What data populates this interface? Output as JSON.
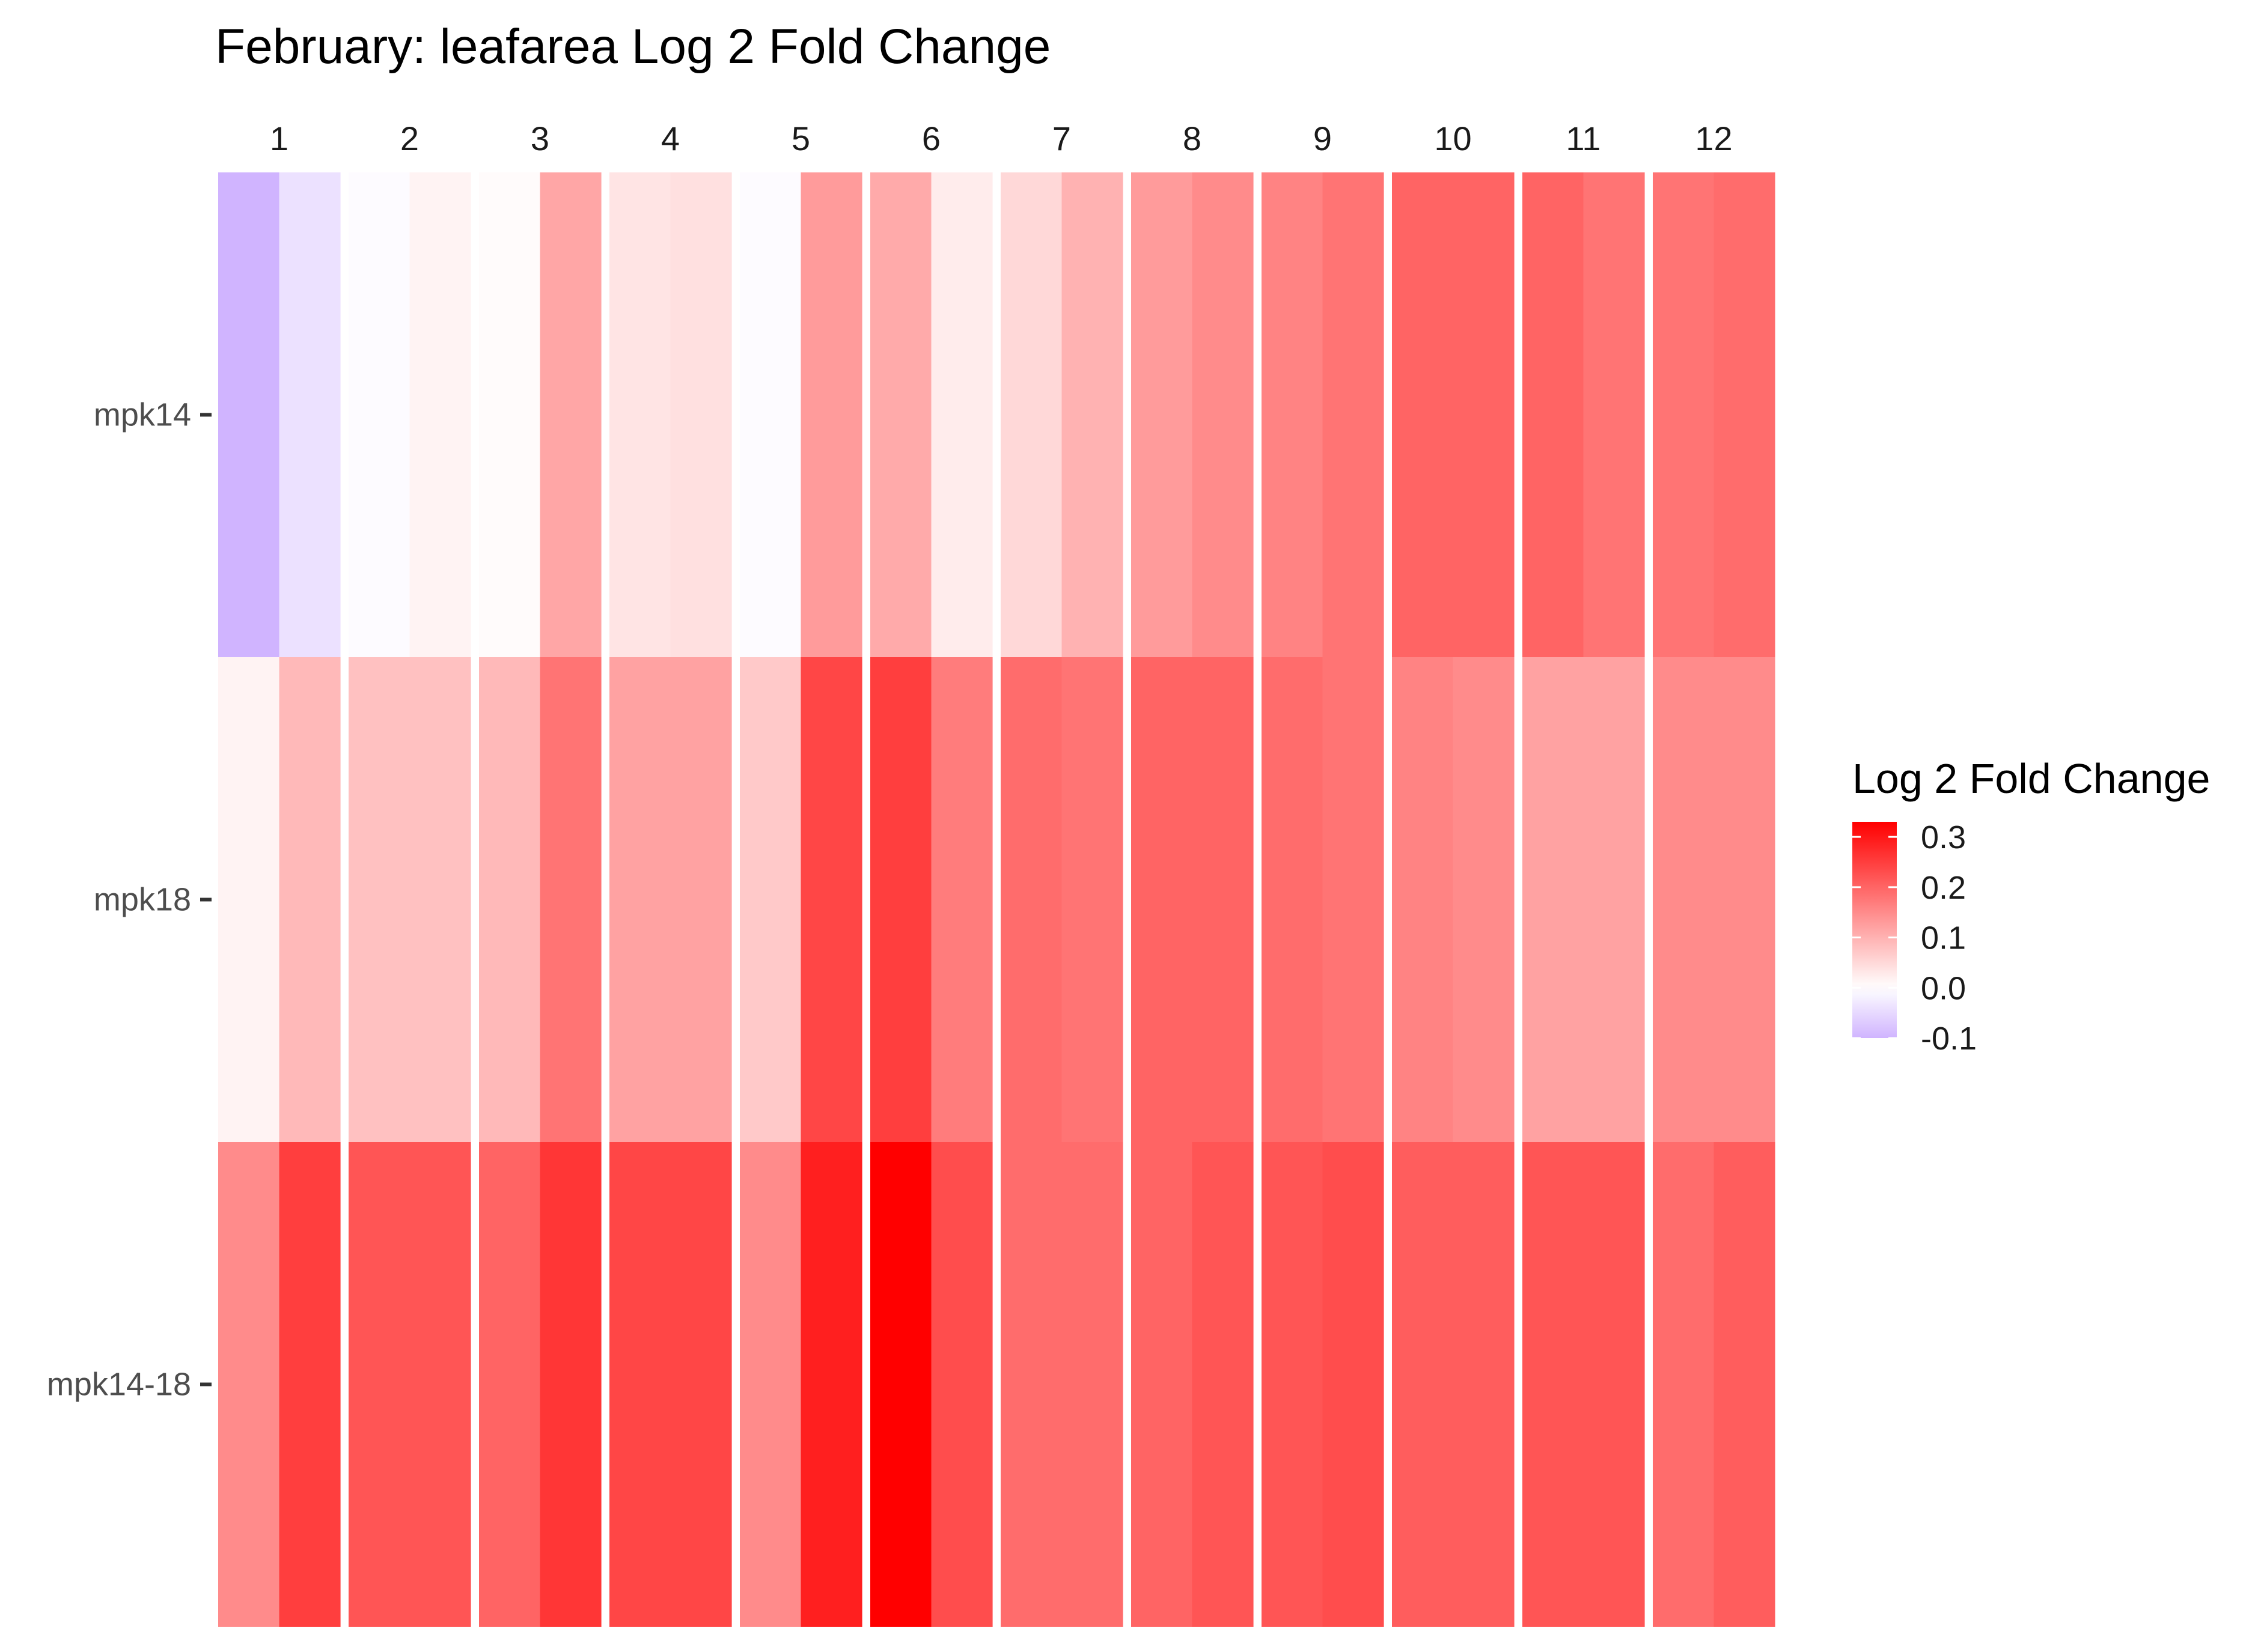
{
  "chart_data": {
    "type": "heatmap",
    "title": "February: leafarea Log 2 Fold Change",
    "columns": [
      "1",
      "2",
      "3",
      "4",
      "5",
      "6",
      "7",
      "8",
      "9",
      "10",
      "11",
      "12"
    ],
    "rows": [
      "mpk14",
      "mpk18",
      "mpk14-18"
    ],
    "sub_columns_per_column": 2,
    "values": [
      [
        [
          -0.1,
          -0.04
        ],
        [
          -0.005,
          0.015
        ],
        [
          0.005,
          0.115
        ],
        [
          0.035,
          0.04
        ],
        [
          -0.005,
          0.13
        ],
        [
          0.11,
          0.025
        ],
        [
          0.05,
          0.1
        ],
        [
          0.13,
          0.15
        ],
        [
          0.16,
          0.18
        ],
        [
          0.2,
          0.2
        ],
        [
          0.2,
          0.18
        ],
        [
          0.18,
          0.19
        ]
      ],
      [
        [
          0.015,
          0.09
        ],
        [
          0.08,
          0.08
        ],
        [
          0.09,
          0.18
        ],
        [
          0.12,
          0.12
        ],
        [
          0.07,
          0.24
        ],
        [
          0.25,
          0.17
        ],
        [
          0.19,
          0.18
        ],
        [
          0.2,
          0.2
        ],
        [
          0.19,
          0.18
        ],
        [
          0.16,
          0.15
        ],
        [
          0.12,
          0.12
        ],
        [
          0.15,
          0.15
        ]
      ],
      [
        [
          0.15,
          0.25
        ],
        [
          0.22,
          0.22
        ],
        [
          0.2,
          0.26
        ],
        [
          0.24,
          0.24
        ],
        [
          0.15,
          0.29
        ],
        [
          0.33,
          0.23
        ],
        [
          0.19,
          0.19
        ],
        [
          0.2,
          0.22
        ],
        [
          0.22,
          0.23
        ],
        [
          0.21,
          0.21
        ],
        [
          0.22,
          0.22
        ],
        [
          0.19,
          0.21
        ]
      ]
    ],
    "legend": {
      "title": "Log 2 Fold Change",
      "placement": "right",
      "range": [
        -0.1,
        0.33
      ],
      "ticks": [
        {
          "value": 0.3,
          "label": "0.3"
        },
        {
          "value": 0.2,
          "label": "0.2"
        },
        {
          "value": 0.1,
          "label": "0.1"
        },
        {
          "value": 0.0,
          "label": "0.0"
        },
        {
          "value": -0.1,
          "label": "-0.1"
        }
      ]
    },
    "colors": {
      "low": "#d0b4ff",
      "mid": "#ffffff",
      "high": "#ff0000"
    },
    "grid": false
  }
}
